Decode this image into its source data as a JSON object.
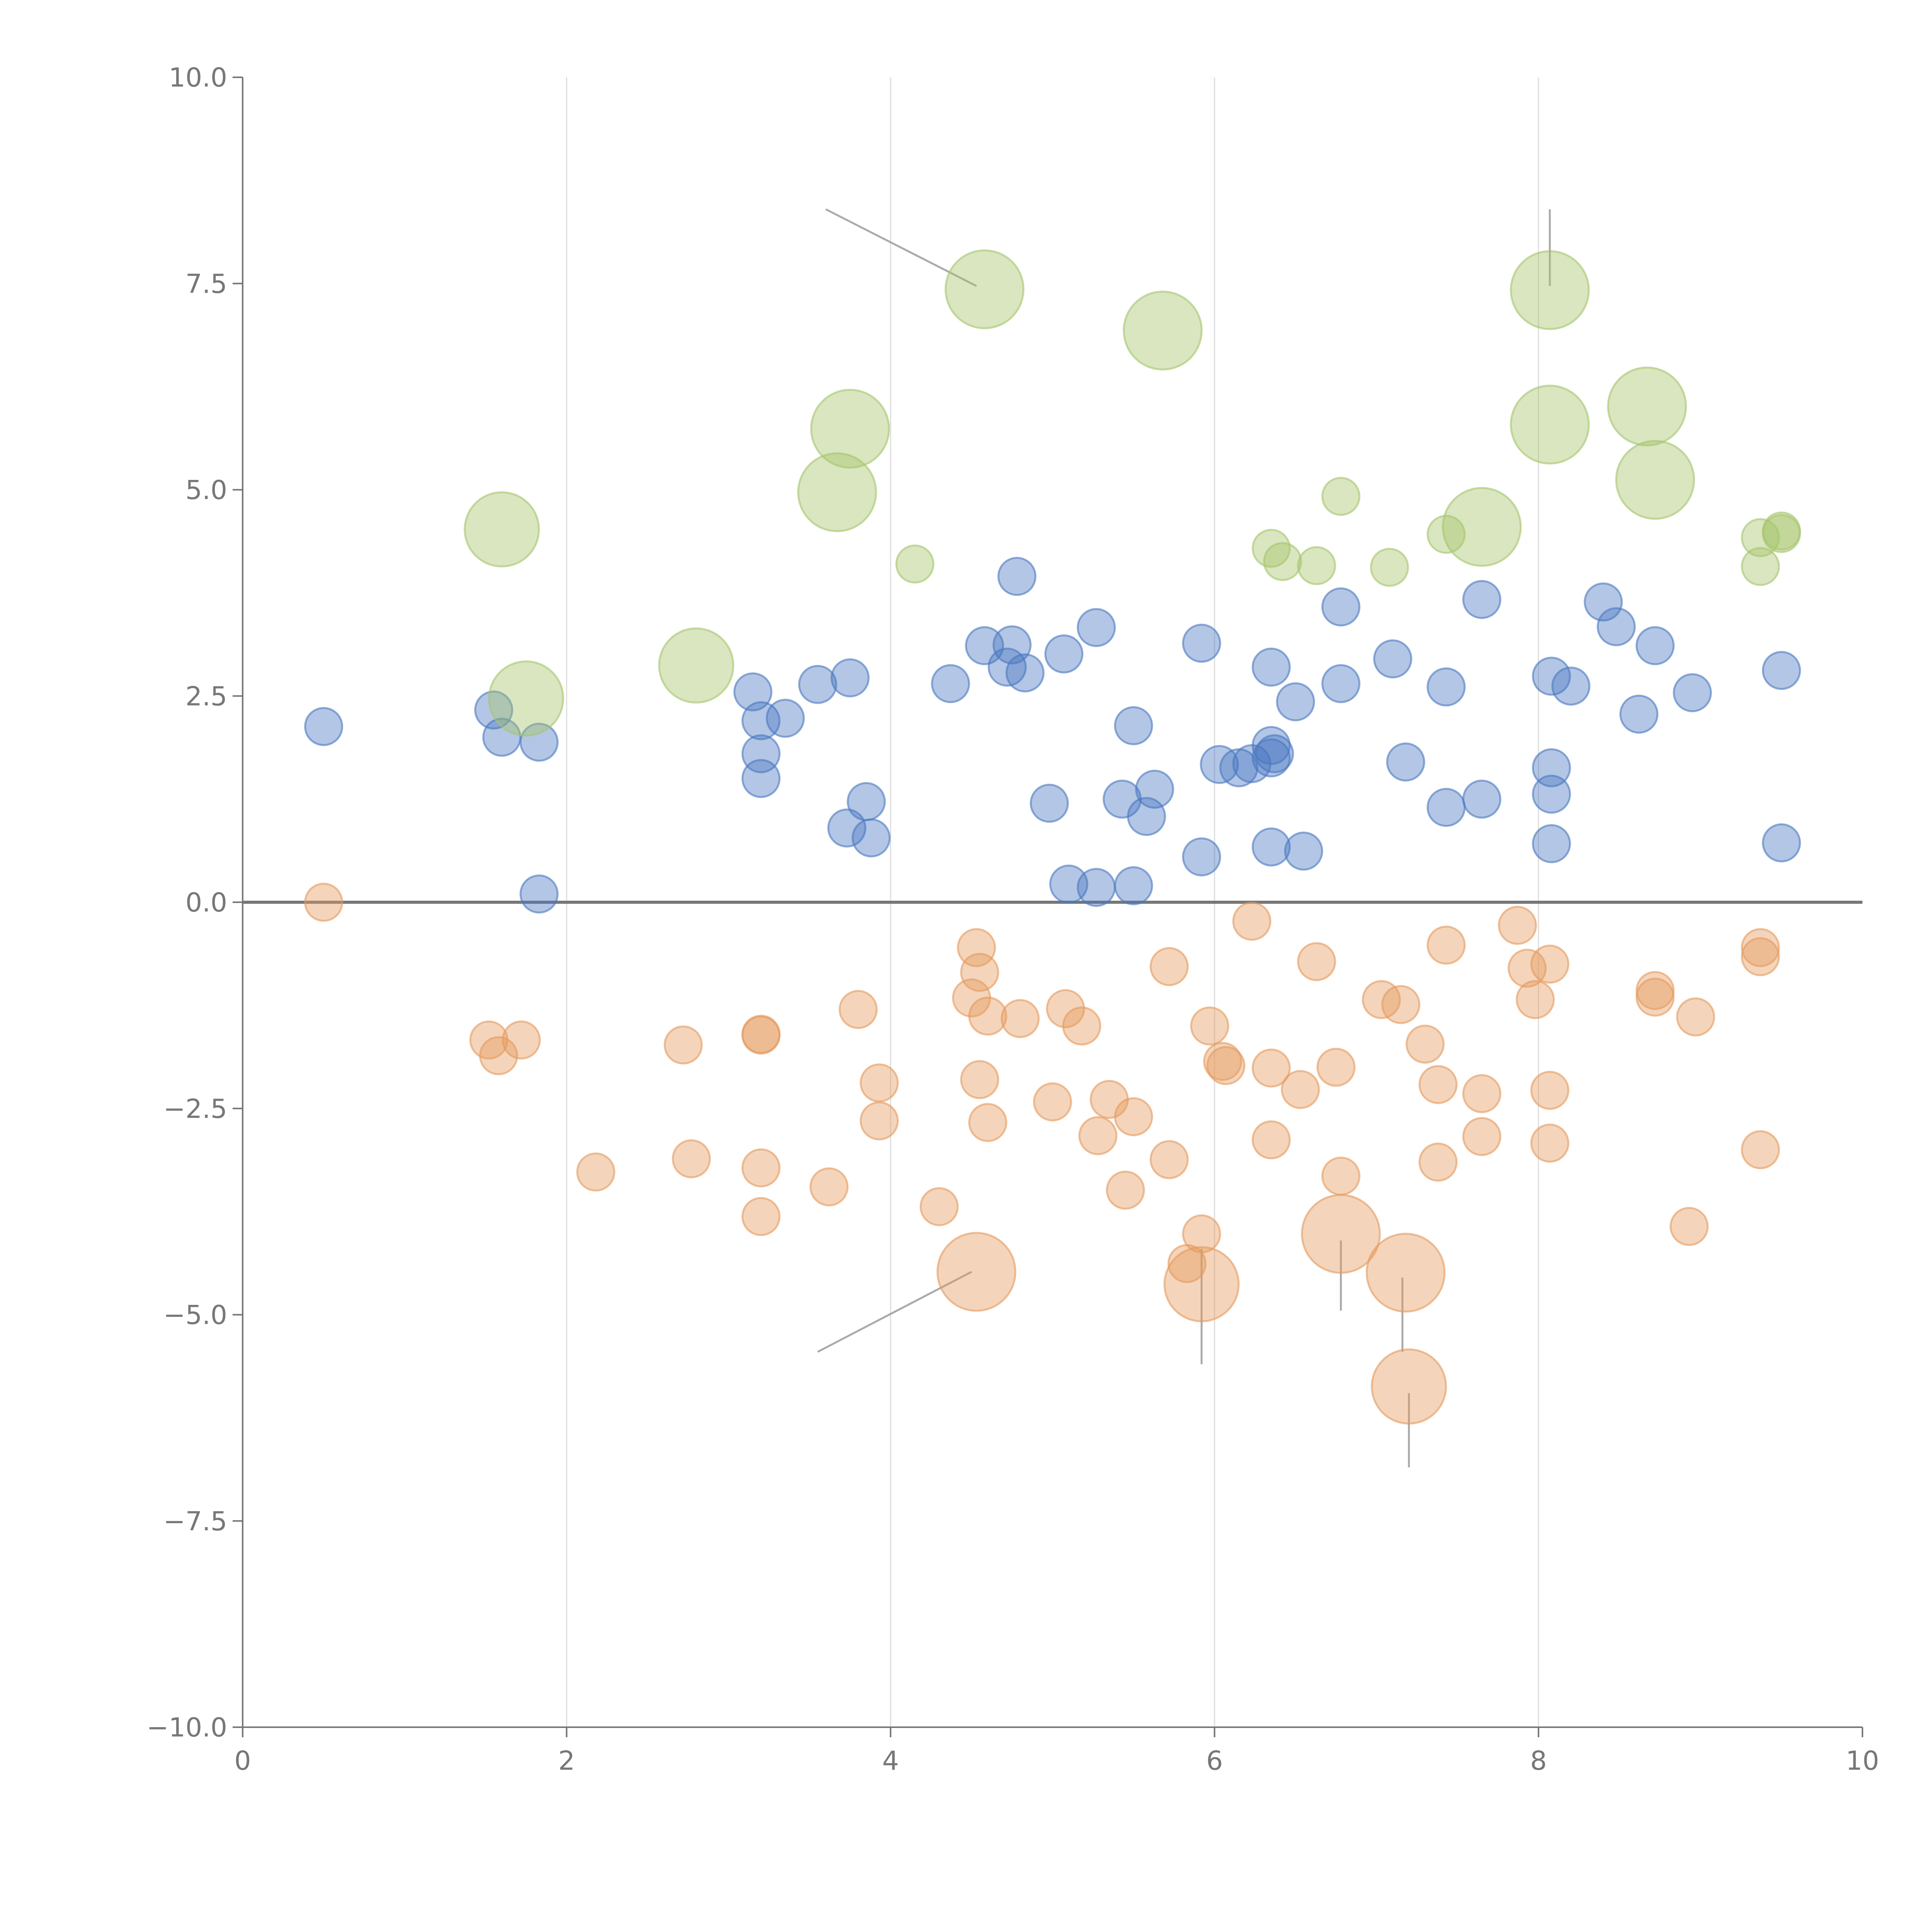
{
  "chart_data": {
    "type": "scatter",
    "title": "",
    "xlabel": "",
    "ylabel": "",
    "xlim": [
      0,
      10
    ],
    "ylim": [
      -10,
      10
    ],
    "xticks": [
      0,
      2,
      4,
      6,
      8,
      10
    ],
    "xtick_labels": [
      "0",
      "2",
      "4",
      "6",
      "8",
      "10"
    ],
    "yticks": [
      10,
      7.5,
      5,
      2.5,
      0,
      -2.5,
      -5,
      -7.5,
      -10
    ],
    "ytick_labels": [
      "10.0",
      "7.5",
      "5.0",
      "2.5",
      "0.0",
      "−2.5",
      "−5.0",
      "−7.5",
      "−10.0"
    ],
    "vertical_grid_at": [
      2,
      4,
      6,
      8
    ],
    "zero_line": true,
    "legend": "none",
    "series": [
      {
        "name": "blue",
        "color": "#4a78c0",
        "points": [
          {
            "x": 0.5,
            "y": 2.13,
            "s": 1
          },
          {
            "x": 1.55,
            "y": 2.33,
            "s": 1
          },
          {
            "x": 1.6,
            "y": 2.0,
            "s": 1
          },
          {
            "x": 1.83,
            "y": 1.94,
            "s": 1
          },
          {
            "x": 1.83,
            "y": 0.1,
            "s": 1
          },
          {
            "x": 3.15,
            "y": 2.55,
            "s": 1
          },
          {
            "x": 3.2,
            "y": 2.2,
            "s": 1
          },
          {
            "x": 3.35,
            "y": 2.23,
            "s": 1
          },
          {
            "x": 3.2,
            "y": 1.8,
            "s": 1
          },
          {
            "x": 3.2,
            "y": 1.5,
            "s": 1
          },
          {
            "x": 3.55,
            "y": 2.64,
            "s": 1
          },
          {
            "x": 3.75,
            "y": 2.72,
            "s": 1
          },
          {
            "x": 3.85,
            "y": 1.22,
            "s": 1
          },
          {
            "x": 3.73,
            "y": 0.9,
            "s": 1
          },
          {
            "x": 3.88,
            "y": 0.78,
            "s": 1
          },
          {
            "x": 4.37,
            "y": 2.65,
            "s": 1
          },
          {
            "x": 4.58,
            "y": 3.11,
            "s": 1
          },
          {
            "x": 4.75,
            "y": 3.12,
            "s": 1
          },
          {
            "x": 4.78,
            "y": 3.95,
            "s": 1
          },
          {
            "x": 4.72,
            "y": 2.85,
            "s": 1
          },
          {
            "x": 4.83,
            "y": 2.78,
            "s": 1
          },
          {
            "x": 5.07,
            "y": 3.01,
            "s": 1
          },
          {
            "x": 5.27,
            "y": 3.33,
            "s": 1
          },
          {
            "x": 4.98,
            "y": 1.2,
            "s": 1
          },
          {
            "x": 5.1,
            "y": 0.22,
            "s": 1
          },
          {
            "x": 5.27,
            "y": 0.18,
            "s": 1
          },
          {
            "x": 5.5,
            "y": 0.2,
            "s": 1
          },
          {
            "x": 5.5,
            "y": 2.14,
            "s": 1
          },
          {
            "x": 5.43,
            "y": 1.25,
            "s": 1
          },
          {
            "x": 5.63,
            "y": 1.37,
            "s": 1
          },
          {
            "x": 5.58,
            "y": 1.04,
            "s": 1
          },
          {
            "x": 5.92,
            "y": 3.14,
            "s": 1
          },
          {
            "x": 5.92,
            "y": 0.55,
            "s": 1
          },
          {
            "x": 6.03,
            "y": 1.67,
            "s": 1
          },
          {
            "x": 6.15,
            "y": 1.63,
            "s": 1
          },
          {
            "x": 6.23,
            "y": 1.68,
            "s": 1
          },
          {
            "x": 6.35,
            "y": 1.9,
            "s": 1
          },
          {
            "x": 6.35,
            "y": 1.75,
            "s": 1
          },
          {
            "x": 6.37,
            "y": 1.8,
            "s": 1
          },
          {
            "x": 6.35,
            "y": 2.85,
            "s": 1
          },
          {
            "x": 6.5,
            "y": 2.43,
            "s": 1
          },
          {
            "x": 6.35,
            "y": 0.67,
            "s": 1
          },
          {
            "x": 6.55,
            "y": 0.62,
            "s": 1
          },
          {
            "x": 6.78,
            "y": 3.58,
            "s": 1
          },
          {
            "x": 6.78,
            "y": 2.65,
            "s": 1
          },
          {
            "x": 7.1,
            "y": 2.95,
            "s": 1
          },
          {
            "x": 7.18,
            "y": 1.7,
            "s": 1
          },
          {
            "x": 7.43,
            "y": 2.61,
            "s": 1
          },
          {
            "x": 7.43,
            "y": 1.15,
            "s": 1
          },
          {
            "x": 7.65,
            "y": 3.67,
            "s": 1
          },
          {
            "x": 7.65,
            "y": 1.25,
            "s": 1
          },
          {
            "x": 8.08,
            "y": 2.74,
            "s": 1
          },
          {
            "x": 8.2,
            "y": 2.62,
            "s": 1
          },
          {
            "x": 8.08,
            "y": 1.63,
            "s": 1
          },
          {
            "x": 8.08,
            "y": 1.31,
            "s": 1
          },
          {
            "x": 8.08,
            "y": 0.71,
            "s": 1
          },
          {
            "x": 8.4,
            "y": 3.64,
            "s": 1
          },
          {
            "x": 8.48,
            "y": 3.34,
            "s": 1
          },
          {
            "x": 8.72,
            "y": 3.11,
            "s": 1
          },
          {
            "x": 8.62,
            "y": 2.28,
            "s": 1
          },
          {
            "x": 8.95,
            "y": 2.54,
            "s": 1
          },
          {
            "x": 9.5,
            "y": 2.81,
            "s": 1
          },
          {
            "x": 9.5,
            "y": 0.72,
            "s": 1
          }
        ]
      },
      {
        "name": "orange",
        "color": "#e59a5e",
        "points": [
          {
            "x": 0.5,
            "y": 0.0,
            "s": 1
          },
          {
            "x": 1.52,
            "y": -1.67,
            "s": 1
          },
          {
            "x": 1.72,
            "y": -1.67,
            "s": 1
          },
          {
            "x": 1.58,
            "y": -1.86,
            "s": 1
          },
          {
            "x": 2.18,
            "y": -3.27,
            "s": 1
          },
          {
            "x": 2.72,
            "y": -1.73,
            "s": 1
          },
          {
            "x": 2.77,
            "y": -3.11,
            "s": 1
          },
          {
            "x": 3.2,
            "y": -1.6,
            "s": 1
          },
          {
            "x": 3.2,
            "y": -1.61,
            "s": 1
          },
          {
            "x": 3.2,
            "y": -3.22,
            "s": 1
          },
          {
            "x": 3.2,
            "y": -3.81,
            "s": 1
          },
          {
            "x": 3.62,
            "y": -3.45,
            "s": 1
          },
          {
            "x": 3.8,
            "y": -1.3,
            "s": 1
          },
          {
            "x": 3.93,
            "y": -2.19,
            "s": 1
          },
          {
            "x": 3.93,
            "y": -2.65,
            "s": 1
          },
          {
            "x": 4.3,
            "y": -3.69,
            "s": 1
          },
          {
            "x": 4.53,
            "y": -0.55,
            "s": 1
          },
          {
            "x": 4.55,
            "y": -0.85,
            "s": 1
          },
          {
            "x": 4.5,
            "y": -1.16,
            "s": 1
          },
          {
            "x": 4.6,
            "y": -1.38,
            "s": 1
          },
          {
            "x": 4.55,
            "y": -2.15,
            "s": 1
          },
          {
            "x": 4.6,
            "y": -2.67,
            "s": 1
          },
          {
            "x": 4.8,
            "y": -1.41,
            "s": 1
          },
          {
            "x": 5.08,
            "y": -1.29,
            "s": 1
          },
          {
            "x": 5.18,
            "y": -1.5,
            "s": 1
          },
          {
            "x": 5.0,
            "y": -2.42,
            "s": 1
          },
          {
            "x": 5.35,
            "y": -2.39,
            "s": 1
          },
          {
            "x": 5.5,
            "y": -2.6,
            "s": 1
          },
          {
            "x": 5.28,
            "y": -2.83,
            "s": 1
          },
          {
            "x": 5.45,
            "y": -3.49,
            "s": 1
          },
          {
            "x": 5.72,
            "y": -0.78,
            "s": 1
          },
          {
            "x": 5.72,
            "y": -3.12,
            "s": 1
          },
          {
            "x": 5.97,
            "y": -1.5,
            "s": 1
          },
          {
            "x": 6.05,
            "y": -1.93,
            "s": 1
          },
          {
            "x": 6.07,
            "y": -1.98,
            "s": 1
          },
          {
            "x": 5.92,
            "y": -4.02,
            "s": 1
          },
          {
            "x": 5.83,
            "y": -4.38,
            "s": 1
          },
          {
            "x": 6.23,
            "y": -0.23,
            "s": 1
          },
          {
            "x": 6.35,
            "y": -2.01,
            "s": 1
          },
          {
            "x": 6.35,
            "y": -2.88,
            "s": 1
          },
          {
            "x": 6.53,
            "y": -2.27,
            "s": 1
          },
          {
            "x": 6.63,
            "y": -0.72,
            "s": 1
          },
          {
            "x": 6.75,
            "y": -2.0,
            "s": 1
          },
          {
            "x": 6.78,
            "y": -3.32,
            "s": 1
          },
          {
            "x": 7.03,
            "y": -1.18,
            "s": 1
          },
          {
            "x": 7.15,
            "y": -1.24,
            "s": 1
          },
          {
            "x": 7.3,
            "y": -1.72,
            "s": 1
          },
          {
            "x": 7.38,
            "y": -2.21,
            "s": 1
          },
          {
            "x": 7.38,
            "y": -3.15,
            "s": 1
          },
          {
            "x": 7.43,
            "y": -0.52,
            "s": 1
          },
          {
            "x": 7.65,
            "y": -2.32,
            "s": 1
          },
          {
            "x": 7.65,
            "y": -2.84,
            "s": 1
          },
          {
            "x": 7.87,
            "y": -0.28,
            "s": 1
          },
          {
            "x": 7.93,
            "y": -0.8,
            "s": 1
          },
          {
            "x": 7.98,
            "y": -1.18,
            "s": 1
          },
          {
            "x": 8.07,
            "y": -0.75,
            "s": 1
          },
          {
            "x": 8.07,
            "y": -2.28,
            "s": 1
          },
          {
            "x": 8.07,
            "y": -2.92,
            "s": 1
          },
          {
            "x": 8.72,
            "y": -1.07,
            "s": 1
          },
          {
            "x": 8.72,
            "y": -1.15,
            "s": 1
          },
          {
            "x": 8.97,
            "y": -1.39,
            "s": 1
          },
          {
            "x": 8.93,
            "y": -3.93,
            "s": 1
          },
          {
            "x": 9.37,
            "y": -0.55,
            "s": 1
          },
          {
            "x": 9.37,
            "y": -0.66,
            "s": 1
          },
          {
            "x": 9.37,
            "y": -3.0,
            "s": 1
          },
          {
            "x": 4.53,
            "y": -4.48,
            "s": 2.1
          },
          {
            "x": 5.92,
            "y": -4.63,
            "s": 2.0
          },
          {
            "x": 6.78,
            "y": -4.02,
            "s": 2.1
          },
          {
            "x": 7.18,
            "y": -4.49,
            "s": 2.1
          },
          {
            "x": 7.2,
            "y": -5.87,
            "s": 2.0
          }
        ]
      },
      {
        "name": "green",
        "color": "#a5c46a",
        "points": [
          {
            "x": 1.6,
            "y": 4.52,
            "s": 2.0
          },
          {
            "x": 1.75,
            "y": 2.47,
            "s": 2.0
          },
          {
            "x": 2.8,
            "y": 2.87,
            "s": 2.0
          },
          {
            "x": 3.67,
            "y": 4.97,
            "s": 2.1
          },
          {
            "x": 3.75,
            "y": 5.74,
            "s": 2.1
          },
          {
            "x": 4.58,
            "y": 7.43,
            "s": 2.1
          },
          {
            "x": 5.68,
            "y": 6.93,
            "s": 2.1
          },
          {
            "x": 8.07,
            "y": 7.42,
            "s": 2.1
          },
          {
            "x": 8.07,
            "y": 5.79,
            "s": 2.1
          },
          {
            "x": 8.67,
            "y": 6.01,
            "s": 2.1
          },
          {
            "x": 8.72,
            "y": 5.12,
            "s": 2.1
          },
          {
            "x": 7.65,
            "y": 4.55,
            "s": 2.1
          },
          {
            "x": 4.15,
            "y": 4.1,
            "s": 1
          },
          {
            "x": 6.35,
            "y": 4.29,
            "s": 1
          },
          {
            "x": 6.42,
            "y": 4.13,
            "s": 1
          },
          {
            "x": 6.63,
            "y": 4.08,
            "s": 1
          },
          {
            "x": 6.78,
            "y": 4.92,
            "s": 1
          },
          {
            "x": 7.08,
            "y": 4.06,
            "s": 1
          },
          {
            "x": 7.43,
            "y": 4.46,
            "s": 1
          },
          {
            "x": 9.37,
            "y": 4.42,
            "s": 1
          },
          {
            "x": 9.37,
            "y": 4.07,
            "s": 1
          },
          {
            "x": 9.5,
            "y": 4.5,
            "s": 1
          },
          {
            "x": 9.5,
            "y": 4.47,
            "s": 1
          }
        ]
      }
    ],
    "annotation_lines": [
      {
        "x1": 3.6,
        "y1": 8.4,
        "x2": 4.53,
        "y2": 7.47,
        "color": "#aaaaaa"
      },
      {
        "x1": 8.07,
        "y1": 8.4,
        "x2": 8.07,
        "y2": 7.47,
        "color": "#aaaaaa"
      },
      {
        "x1": 3.55,
        "y1": -5.45,
        "x2": 4.5,
        "y2": -4.48,
        "color": "#aaaaaa"
      },
      {
        "x1": 5.92,
        "y1": -4.2,
        "x2": 5.92,
        "y2": -5.6,
        "color": "#aaaaaa"
      },
      {
        "x1": 6.78,
        "y1": -4.1,
        "x2": 6.78,
        "y2": -4.95,
        "color": "#aaaaaa"
      },
      {
        "x1": 7.16,
        "y1": -4.55,
        "x2": 7.16,
        "y2": -5.45,
        "color": "#aaaaaa"
      },
      {
        "x1": 7.2,
        "y1": -5.95,
        "x2": 7.2,
        "y2": -6.85,
        "color": "#aaaaaa"
      }
    ]
  },
  "colors": {
    "axis": "#777777",
    "grid": "#dddddd",
    "background": "#ffffff"
  }
}
